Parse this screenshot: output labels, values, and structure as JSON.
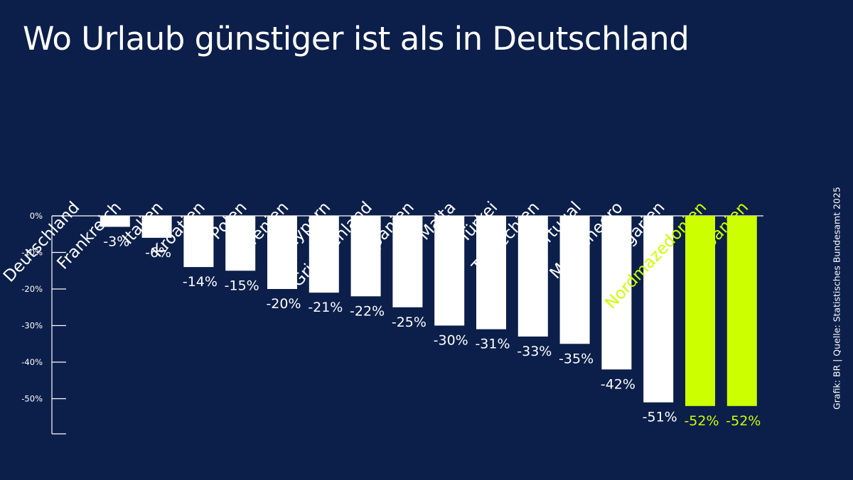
{
  "title": "Wo Urlaub günstiger ist als in Deutschland",
  "credit": "Grafik: BR | Quelle: Statistisches Bundesamt 2025",
  "colors": {
    "background": "#0c1f4a",
    "bar": "#ffffff",
    "highlight": "#ccff00",
    "text": "#ffffff",
    "axis": "#ffffff"
  },
  "chart_data": {
    "type": "bar",
    "categories": [
      "Deutschland",
      "Frankreich",
      "Italien",
      "Kroatien",
      "Polen",
      "Slowenien",
      "Zypern",
      "Griechenland",
      "Spanien",
      "Malta",
      "Türkei",
      "Tschechien",
      "Portugal",
      "Montenegro",
      "Bulgarien",
      "Nordmazedonien",
      "Albanien"
    ],
    "values": [
      0,
      -3,
      -6,
      -14,
      -15,
      -20,
      -21,
      -22,
      -25,
      -30,
      -31,
      -33,
      -35,
      -42,
      -51,
      -52,
      -52
    ],
    "value_labels": [
      "",
      "-3%",
      "-6%",
      "-14%",
      "-15%",
      "-20%",
      "-21%",
      "-22%",
      "-25%",
      "-30%",
      "-31%",
      "-33%",
      "-35%",
      "-42%",
      "-51%",
      "-52%",
      "-52%"
    ],
    "highlighted": [
      false,
      false,
      false,
      false,
      false,
      false,
      false,
      false,
      false,
      false,
      false,
      false,
      false,
      false,
      false,
      true,
      true
    ],
    "y_ticks": [
      0,
      -10,
      -20,
      -30,
      -40,
      -50
    ],
    "y_tick_labels": [
      "0%",
      "-10%",
      "-20%",
      "-30%",
      "-40%",
      "-50%"
    ],
    "ylim": [
      -60,
      0
    ],
    "xlabel": "",
    "ylabel": "",
    "grid": false,
    "legend": "none"
  }
}
